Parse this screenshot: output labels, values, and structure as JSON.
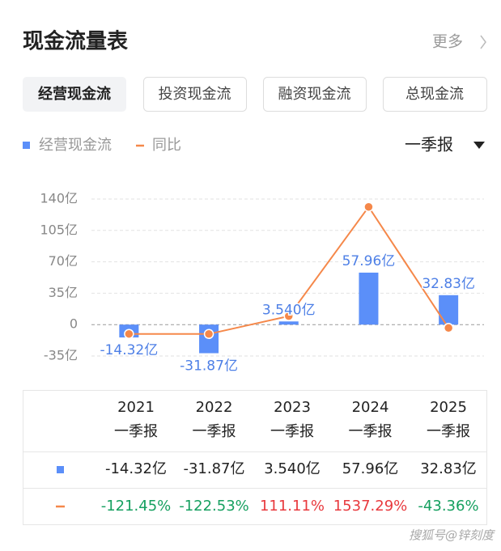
{
  "header": {
    "title": "现金流量表",
    "more": "更多"
  },
  "tabs": [
    "经营现金流",
    "投资现金流",
    "融资现金流",
    "总现金流"
  ],
  "period": "一季报",
  "chart_data": {
    "type": "bar_line",
    "categories": [
      "2021",
      "2022",
      "2023",
      "2024",
      "2025"
    ],
    "series": [
      {
        "name": "经营现金流",
        "color": "#5b8ff9",
        "values": [
          -14.32,
          -31.87,
          3.54,
          57.96,
          32.83
        ],
        "value_labels": [
          "-14.32亿",
          "-31.87亿",
          "3.540亿",
          "57.96亿",
          "32.83亿"
        ]
      },
      {
        "name": "同比",
        "color": "#f5884a",
        "axis": "y2",
        "values": [
          -121.45,
          -122.53,
          111.11,
          1537.29,
          -43.36
        ],
        "value_labels": [
          "-121.45%",
          "-122.53%",
          "111.11%",
          "1537.29%",
          "-43.36%"
        ]
      }
    ],
    "ylim": [
      -35,
      140
    ],
    "yticks": [
      {
        "value": -35,
        "label": "-35亿"
      },
      0,
      {
        "value": 35,
        "label": "35亿"
      },
      {
        "value": 70,
        "label": "70亿"
      },
      {
        "value": 105,
        "label": "105亿"
      },
      {
        "value": 140,
        "label": "140亿"
      }
    ],
    "y2lim": [
      -410,
      1640
    ],
    "grid": true
  },
  "watermark": "搜狐号@锌刻度"
}
